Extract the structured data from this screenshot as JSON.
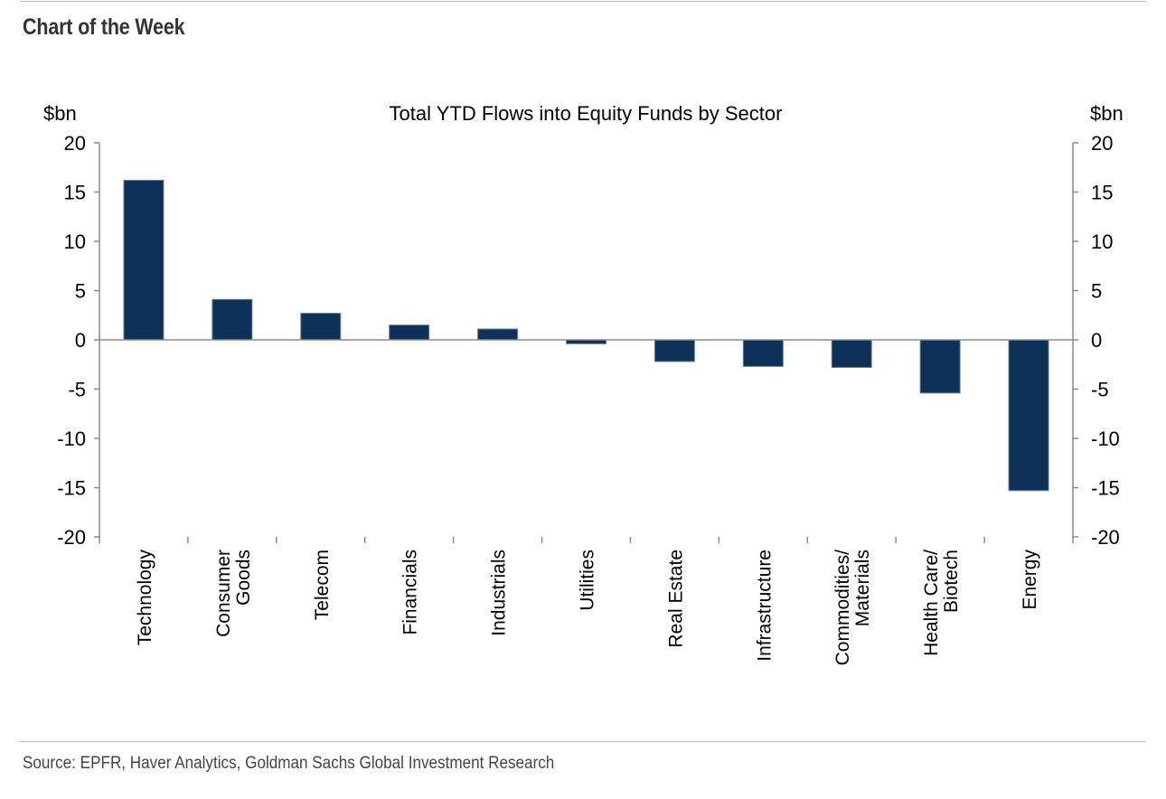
{
  "page": {
    "heading": "Chart of the Week",
    "source": "Source: EPFR, Haver Analytics, Goldman Sachs Global Investment Research"
  },
  "colors": {
    "bar": "#0d3158",
    "axis": "#8a8a8a",
    "text": "#000000"
  },
  "chart_data": {
    "type": "bar",
    "title": "Total YTD Flows into Equity Funds by Sector",
    "ylabel_left": "$bn",
    "ylabel_right": "$bn",
    "xlabel": "",
    "ylim": [
      -20,
      20
    ],
    "yticks": [
      20,
      15,
      10,
      5,
      0,
      -5,
      -10,
      -15,
      -20
    ],
    "grid": false,
    "legend": "none",
    "categories": [
      [
        "Technology"
      ],
      [
        "Consumer",
        "Goods"
      ],
      [
        "Telecom"
      ],
      [
        "Financials"
      ],
      [
        "Industrials"
      ],
      [
        "Utilities"
      ],
      [
        "Real Estate"
      ],
      [
        "Infrastructure"
      ],
      [
        "Commodities/",
        "Materials"
      ],
      [
        "Health Care/",
        "Biotech"
      ],
      [
        "Energy"
      ]
    ],
    "values": [
      16.2,
      4.1,
      2.7,
      1.5,
      1.1,
      -0.4,
      -2.2,
      -2.7,
      -2.8,
      -5.4,
      -15.3
    ]
  }
}
